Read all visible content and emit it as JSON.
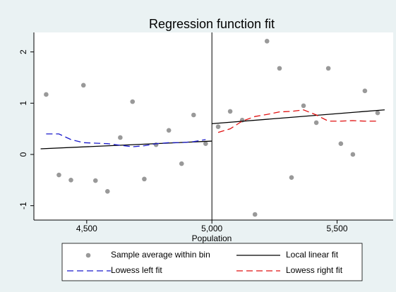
{
  "chart_data": {
    "type": "scatter",
    "title": "Regression function fit",
    "x_label": "Population",
    "xlim": [
      4289,
      5724
    ],
    "ylim": [
      -1.28,
      2.38
    ],
    "xticks": [
      {
        "value": 4500,
        "label": "4,500"
      },
      {
        "value": 5000,
        "label": "5,000"
      },
      {
        "value": 5500,
        "label": "5,500"
      }
    ],
    "yticks": [
      -1,
      0,
      1,
      2
    ],
    "threshold": 5000,
    "series": [
      {
        "name": "Sample average within bin",
        "type": "scatter",
        "color": "#999999",
        "x": [
          4338,
          4389,
          4437,
          4487,
          4535,
          4583,
          4634,
          4683,
          4730,
          4777,
          4828,
          4879,
          4927,
          4975,
          5025,
          5073,
          5121,
          5172,
          5220,
          5270,
          5318,
          5366,
          5417,
          5465,
          5515,
          5563,
          5611,
          5662
        ],
        "values": [
          1.17,
          -0.4,
          -0.5,
          1.35,
          -0.51,
          -0.72,
          0.33,
          1.03,
          -0.48,
          0.19,
          0.47,
          -0.18,
          0.77,
          0.21,
          0.54,
          0.84,
          0.67,
          -1.17,
          2.21,
          1.68,
          -0.45,
          0.95,
          0.62,
          1.68,
          0.21,
          0.0,
          1.24,
          0.81
        ]
      },
      {
        "name": "Local linear fit",
        "type": "line",
        "color": "#000000",
        "dash": false,
        "x": [
          4316,
          5000,
          null,
          5000,
          5690
        ],
        "values": [
          0.11,
          0.26,
          null,
          0.6,
          0.87
        ]
      },
      {
        "name": "Lowess left fit",
        "type": "line",
        "color": "#1a1acc",
        "dash": true,
        "x": [
          4338,
          4389,
          4437,
          4487,
          4535,
          4583,
          4634,
          4683,
          4730,
          4777,
          4828,
          4879,
          4927,
          4975
        ],
        "values": [
          0.4,
          0.4,
          0.29,
          0.23,
          0.22,
          0.21,
          0.18,
          0.15,
          0.17,
          0.21,
          0.23,
          0.23,
          0.25,
          0.29
        ]
      },
      {
        "name": "Lowess right fit",
        "type": "line",
        "color": "#e01010",
        "dash": true,
        "x": [
          5025,
          5073,
          5121,
          5172,
          5220,
          5270,
          5318,
          5366,
          5417,
          5465,
          5515,
          5563,
          5611,
          5662
        ],
        "values": [
          0.43,
          0.5,
          0.65,
          0.74,
          0.78,
          0.83,
          0.84,
          0.87,
          0.77,
          0.65,
          0.65,
          0.66,
          0.65,
          0.65
        ]
      }
    ]
  }
}
